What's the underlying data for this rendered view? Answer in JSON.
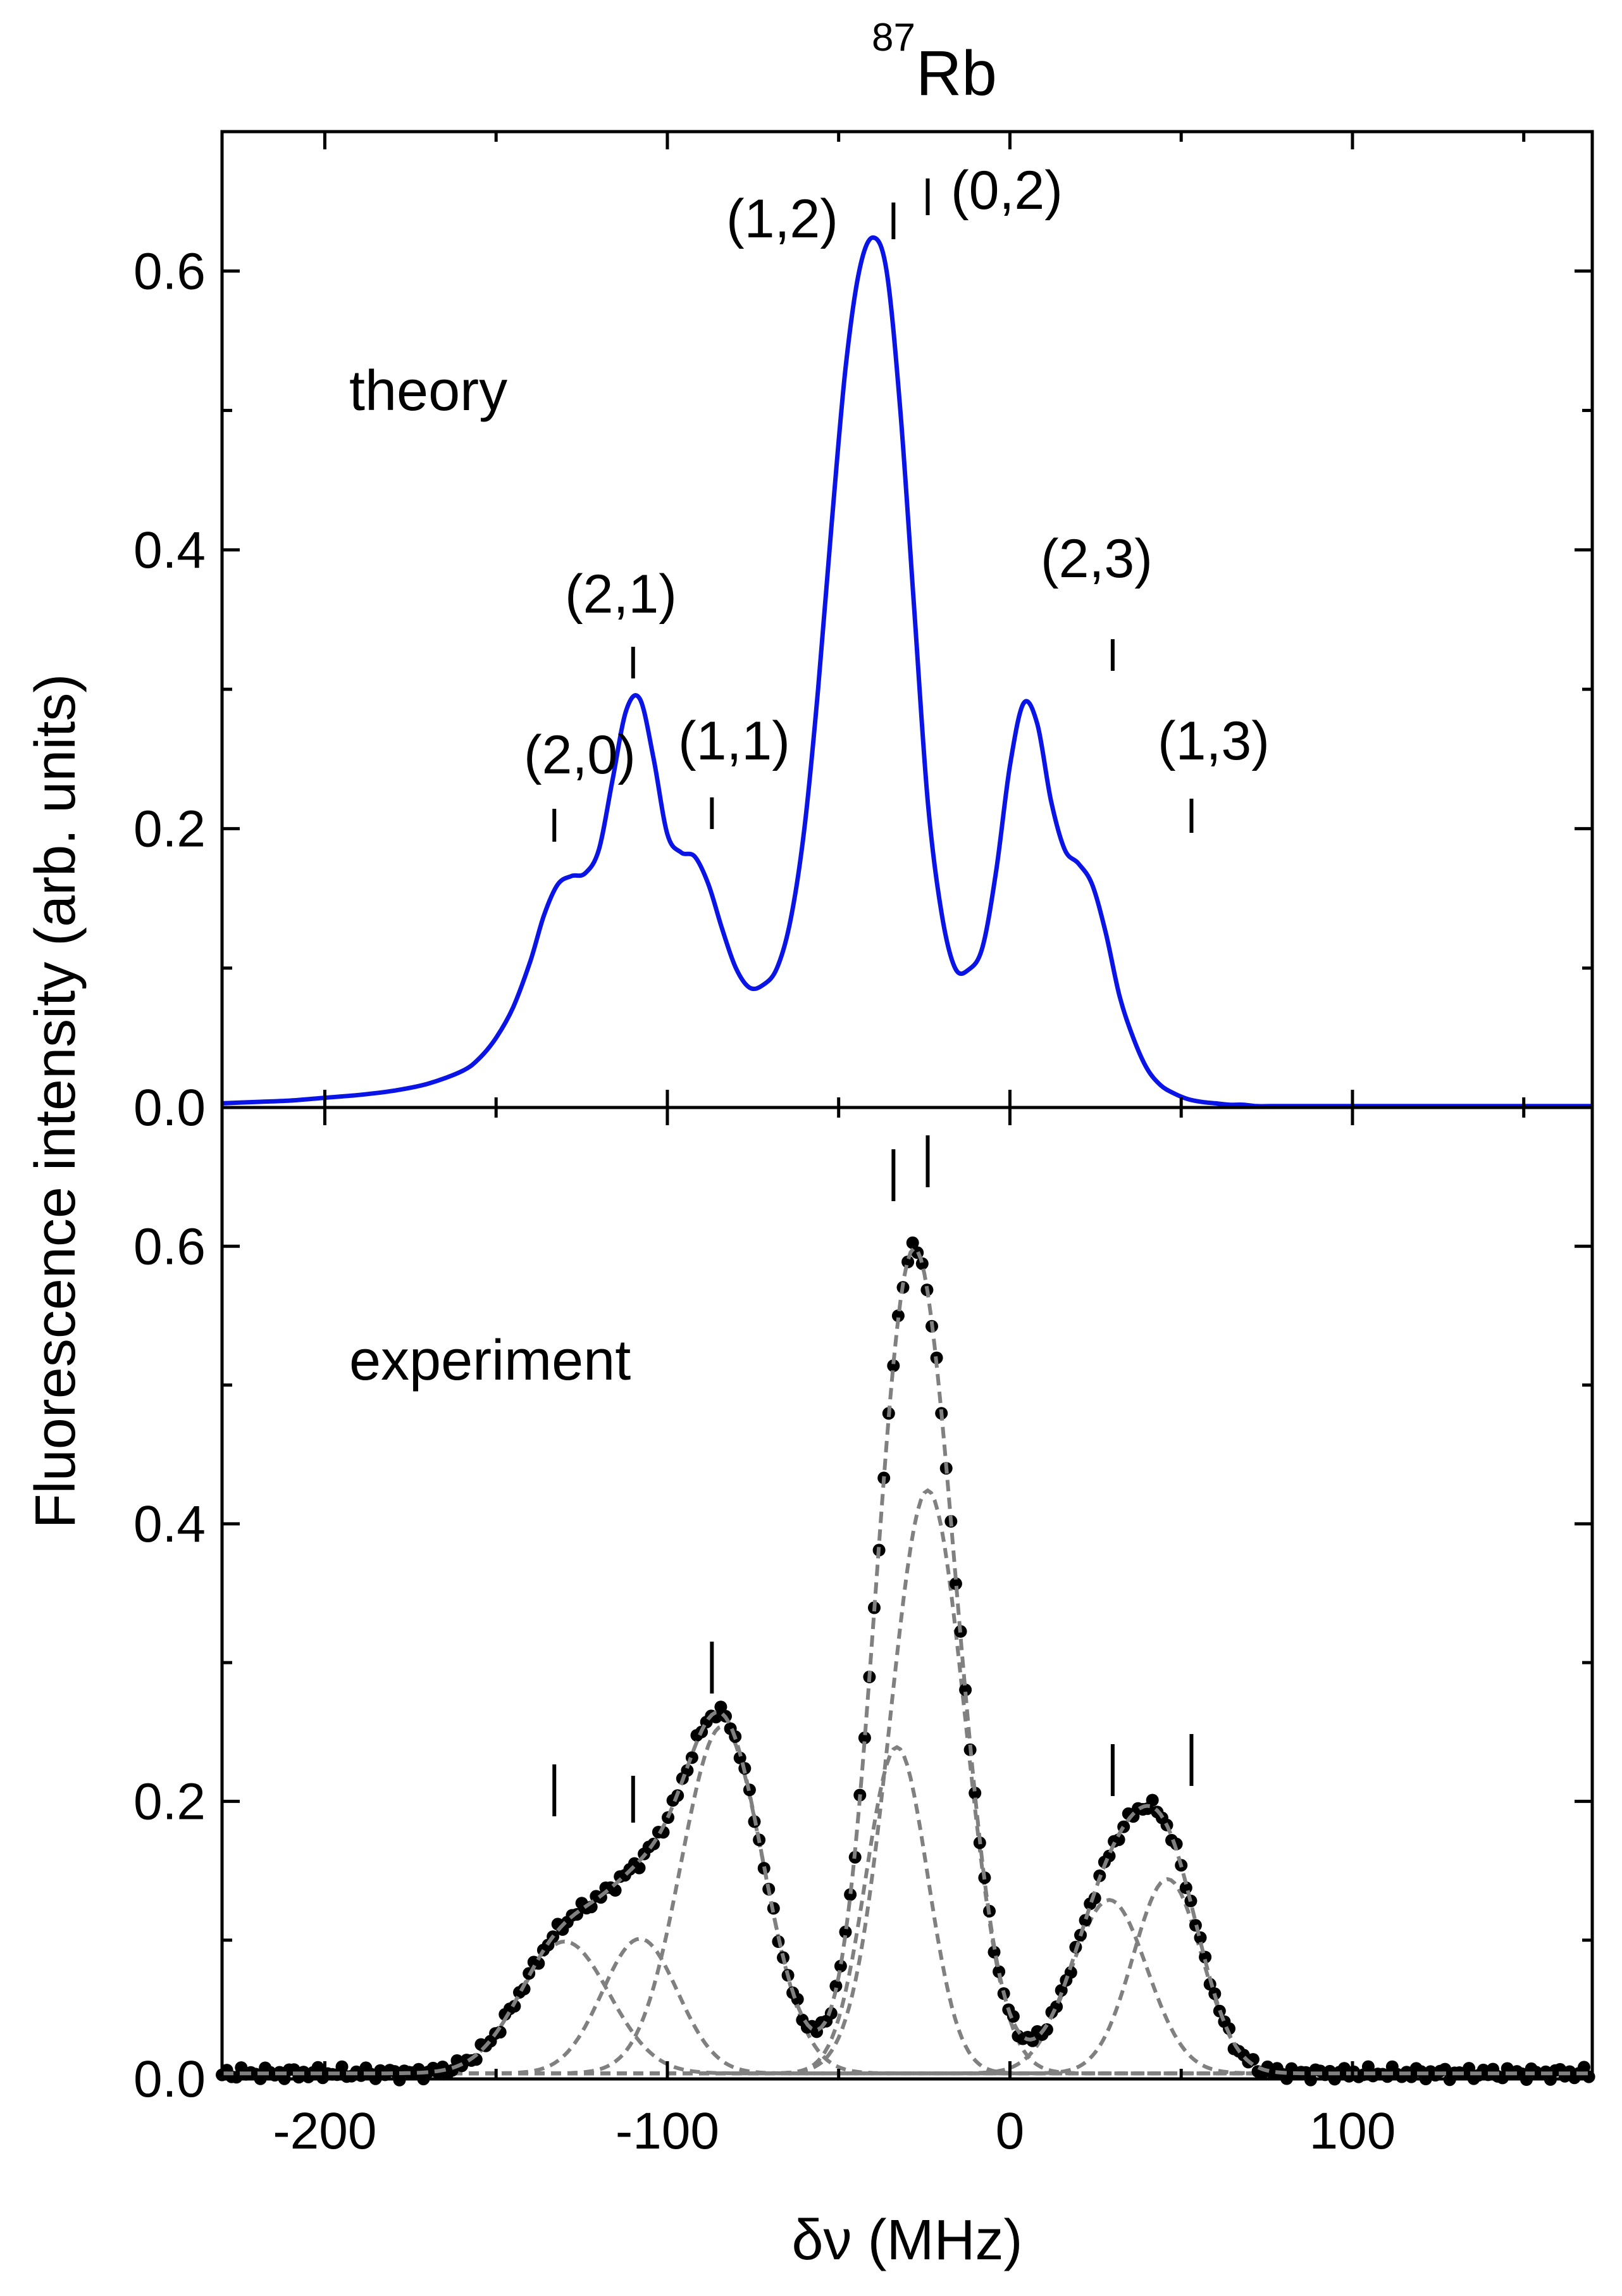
{
  "chart_data": {
    "type": "line",
    "title": "Rb",
    "title_superscript": "87",
    "xlabel": "δν (MHz)",
    "ylabel": "Fluorescence intensity (arb. units)",
    "xlim": [
      -230,
      170
    ],
    "x_ticks": [
      -200,
      -100,
      0,
      100
    ],
    "x_tick_labels": [
      "-200",
      "-100",
      "0",
      "100"
    ],
    "panels": [
      {
        "name": "theory",
        "label": "theory",
        "ylim": [
          0,
          0.7
        ],
        "y_ticks": [
          0.0,
          0.2,
          0.4,
          0.6
        ],
        "y_tick_labels": [
          "0.0",
          "0.2",
          "0.4",
          "0.6"
        ],
        "series": [
          {
            "name": "theory",
            "color": "#0a14e6",
            "style": "solid",
            "x": [
              -230,
              -220,
              -210,
              -200,
              -190,
              -180,
              -170,
              -160,
              -155,
              -150,
              -145,
              -140,
              -136,
              -132,
              -128,
              -124,
              -120,
              -116,
              -112,
              -108,
              -104,
              -100,
              -96,
              -92,
              -88,
              -84,
              -80,
              -76,
              -72,
              -68,
              -64,
              -60,
              -56,
              -52,
              -48,
              -44,
              -40,
              -36,
              -32,
              -28,
              -24,
              -20,
              -16,
              -12,
              -8,
              -4,
              0,
              4,
              8,
              12,
              16,
              20,
              24,
              28,
              32,
              36,
              40,
              44,
              48,
              52,
              56,
              60,
              64,
              68,
              72,
              76,
              80,
              90,
              100,
              110,
              120,
              130,
              140,
              150,
              160,
              170
            ],
            "y": [
              0.003,
              0.004,
              0.005,
              0.007,
              0.009,
              0.012,
              0.017,
              0.026,
              0.035,
              0.05,
              0.072,
              0.105,
              0.138,
              0.16,
              0.166,
              0.168,
              0.185,
              0.235,
              0.285,
              0.293,
              0.25,
              0.196,
              0.183,
              0.18,
              0.16,
              0.128,
              0.1,
              0.086,
              0.088,
              0.1,
              0.135,
              0.2,
              0.3,
              0.42,
              0.53,
              0.6,
              0.624,
              0.6,
              0.5,
              0.36,
              0.22,
              0.14,
              0.1,
              0.099,
              0.115,
              0.17,
              0.245,
              0.29,
              0.275,
              0.22,
              0.185,
              0.175,
              0.16,
              0.125,
              0.08,
              0.05,
              0.028,
              0.016,
              0.01,
              0.006,
              0.004,
              0.003,
              0.002,
              0.002,
              0.001,
              0.001,
              0.001,
              0.001,
              0.001,
              0.001,
              0.001,
              0.001,
              0.001,
              0.001,
              0.001,
              0.001
            ]
          }
        ],
        "annotations": [
          {
            "label": "(2,0)",
            "x": -133
          },
          {
            "label": "(2,1)",
            "x": -110
          },
          {
            "label": "(1,1)",
            "x": -87
          },
          {
            "label": "(1,2)",
            "x": -34
          },
          {
            "label": "(0,2)",
            "x": -24
          },
          {
            "label": "(2,3)",
            "x": 30
          },
          {
            "label": "(1,3)",
            "x": 53
          }
        ]
      },
      {
        "name": "experiment",
        "label": "experiment",
        "ylim": [
          0,
          0.7
        ],
        "y_ticks": [
          0.0,
          0.2,
          0.4,
          0.6
        ],
        "y_tick_labels": [
          "0.0",
          "0.2",
          "0.4",
          "0.6"
        ],
        "marker_x": [
          -133,
          -110,
          -87,
          -34,
          -24,
          30,
          53
        ],
        "components": [
          {
            "name": "component-1",
            "center": -130,
            "amplitude": 0.095,
            "width": 13
          },
          {
            "name": "component-2",
            "center": -108,
            "amplitude": 0.097,
            "width": 11
          },
          {
            "name": "component-3",
            "center": -84,
            "amplitude": 0.25,
            "width": 12
          },
          {
            "name": "component-4",
            "center": -33,
            "amplitude": 0.235,
            "width": 9
          },
          {
            "name": "component-5",
            "center": -24,
            "amplitude": 0.42,
            "width": 11
          },
          {
            "name": "component-6",
            "center": 29,
            "amplitude": 0.125,
            "width": 11
          },
          {
            "name": "component-7",
            "center": 46,
            "amplitude": 0.14,
            "width": 10
          }
        ],
        "fit_color": "#808080",
        "data_color": "#000000"
      }
    ]
  }
}
